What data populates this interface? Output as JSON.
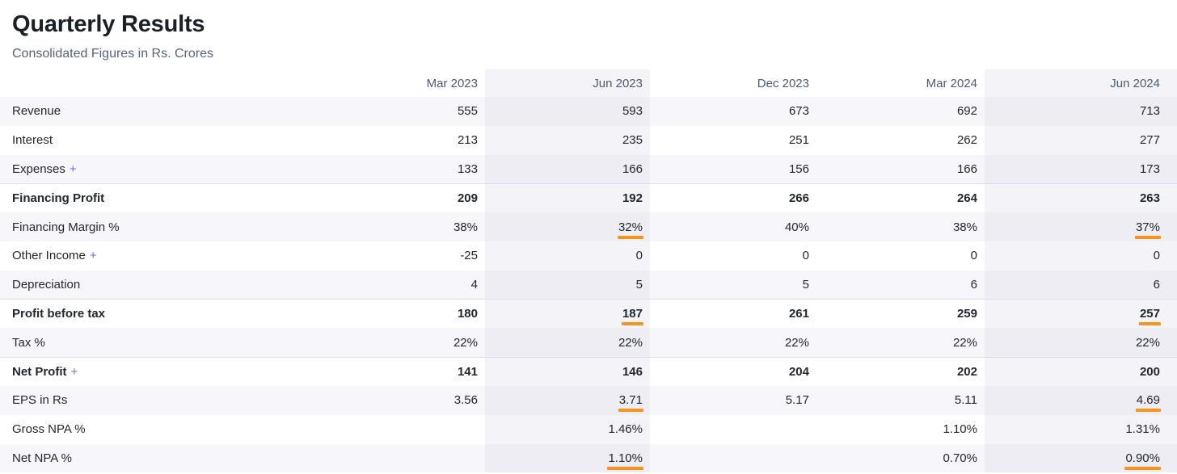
{
  "header": {
    "title": "Quarterly Results",
    "subtitle": "Consolidated Figures in Rs. Crores"
  },
  "colors": {
    "accent_orange": "#f7941e",
    "plus_link": "#6d6af0",
    "stripe_row": "#f7f7fb",
    "highlight_col_on_white": "#f3f3f8",
    "highlight_col_on_stripe": "#ededf3",
    "separator_line": "#d9e0eb",
    "header_text": "#4b5a72",
    "body_text": "#23272e"
  },
  "table": {
    "plus_label": "+",
    "columns": [
      "Mar 2023",
      "Jun 2023",
      "Dec 2023",
      "Mar 2024",
      "Jun 2024"
    ],
    "highlighted_columns": [
      1,
      4
    ],
    "rows": [
      {
        "label": "Revenue",
        "values": [
          "555",
          "593",
          "673",
          "692",
          "713"
        ]
      },
      {
        "label": "Interest",
        "values": [
          "213",
          "235",
          "251",
          "262",
          "277"
        ]
      },
      {
        "label": "Expenses",
        "expandable": true,
        "values": [
          "133",
          "166",
          "156",
          "166",
          "173"
        ]
      },
      {
        "label": "Financing Profit",
        "bold": true,
        "separator_top": true,
        "values": [
          "209",
          "192",
          "266",
          "264",
          "263"
        ]
      },
      {
        "label": "Financing Margin %",
        "values": [
          "38%",
          "32%",
          "40%",
          "38%",
          "37%"
        ],
        "underlined": [
          1,
          4
        ]
      },
      {
        "label": "Other Income",
        "expandable": true,
        "values": [
          "-25",
          "0",
          "0",
          "0",
          "0"
        ]
      },
      {
        "label": "Depreciation",
        "values": [
          "4",
          "5",
          "5",
          "6",
          "6"
        ]
      },
      {
        "label": "Profit before tax",
        "bold": true,
        "separator_top": true,
        "values": [
          "180",
          "187",
          "261",
          "259",
          "257"
        ],
        "underlined": [
          1,
          4
        ]
      },
      {
        "label": "Tax %",
        "values": [
          "22%",
          "22%",
          "22%",
          "22%",
          "22%"
        ]
      },
      {
        "label": "Net Profit",
        "bold": true,
        "expandable": true,
        "separator_top": true,
        "values": [
          "141",
          "146",
          "204",
          "202",
          "200"
        ]
      },
      {
        "label": "EPS in Rs",
        "values": [
          "3.56",
          "3.71",
          "5.17",
          "5.11",
          "4.69"
        ],
        "underlined": [
          1,
          4
        ]
      },
      {
        "label": "Gross NPA %",
        "values": [
          "",
          "1.46%",
          "",
          "1.10%",
          "1.31%"
        ]
      },
      {
        "label": "Net NPA %",
        "values": [
          "",
          "1.10%",
          "",
          "0.70%",
          "0.90%"
        ],
        "underlined": [
          1,
          4
        ]
      }
    ]
  }
}
